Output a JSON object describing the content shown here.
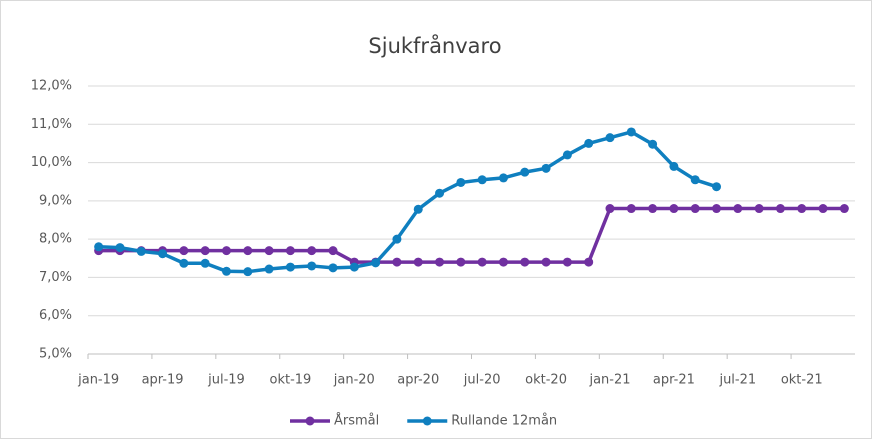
{
  "chart_data": {
    "type": "line",
    "title": "Sjukfrånvaro",
    "categories": [
      "jan-19",
      null,
      null,
      "apr-19",
      null,
      null,
      "jul-19",
      null,
      null,
      "okt-19",
      null,
      null,
      "jan-20",
      null,
      null,
      "apr-20",
      null,
      null,
      "jul-20",
      null,
      null,
      "okt-20",
      null,
      null,
      "jan-21",
      null,
      null,
      "apr-21",
      null,
      null,
      "jul-21",
      null,
      null,
      "okt-21",
      null,
      null
    ],
    "series": [
      {
        "name": "Årsmål",
        "color": "#7030a0",
        "values": [
          7.7,
          7.7,
          7.7,
          7.7,
          7.7,
          7.7,
          7.7,
          7.7,
          7.7,
          7.7,
          7.7,
          7.7,
          7.4,
          7.4,
          7.4,
          7.4,
          7.4,
          7.4,
          7.4,
          7.4,
          7.4,
          7.4,
          7.4,
          7.4,
          8.8,
          8.8,
          8.8,
          8.8,
          8.8,
          8.8,
          8.8,
          8.8,
          8.8,
          8.8,
          8.8,
          8.8
        ]
      },
      {
        "name": "Rullande 12mån",
        "color": "#0f7fbf",
        "values": [
          7.8,
          7.78,
          7.68,
          7.62,
          7.37,
          7.37,
          7.16,
          7.15,
          7.22,
          7.27,
          7.3,
          7.25,
          7.27,
          7.38,
          8.0,
          8.78,
          9.2,
          9.48,
          9.55,
          9.6,
          9.75,
          9.85,
          10.2,
          10.5,
          10.65,
          10.8,
          10.48,
          9.9,
          9.55,
          9.37,
          null,
          null,
          null,
          null,
          null,
          null
        ]
      }
    ],
    "ylim": [
      5,
      12
    ],
    "yticks": [
      {
        "value": 5,
        "label": "5,0%"
      },
      {
        "value": 6,
        "label": "6,0%"
      },
      {
        "value": 7,
        "label": "7,0%"
      },
      {
        "value": 8,
        "label": "8,0%"
      },
      {
        "value": 9,
        "label": "9,0%"
      },
      {
        "value": 10,
        "label": "10,0%"
      },
      {
        "value": 11,
        "label": "11,0%"
      },
      {
        "value": 12,
        "label": "12,0%"
      }
    ],
    "grid": true,
    "legend": "bottom"
  }
}
